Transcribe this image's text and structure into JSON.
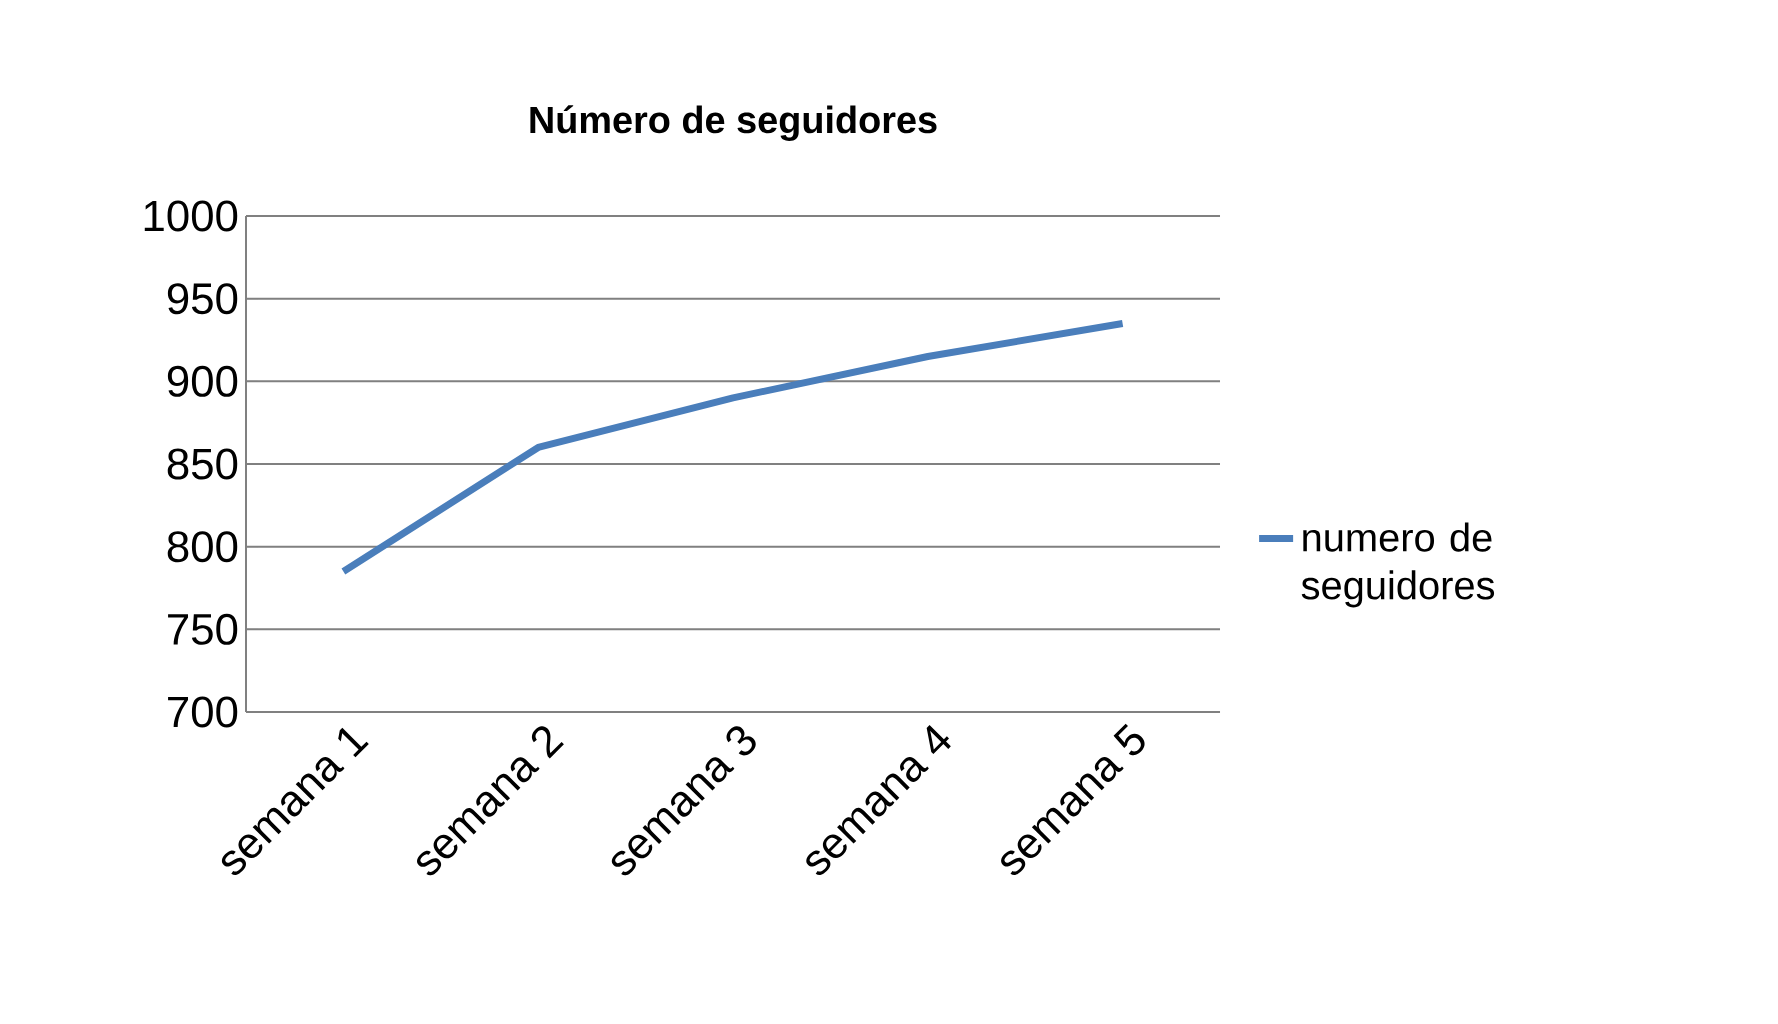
{
  "chart_data": {
    "type": "line",
    "title": "Número de seguidores",
    "categories": [
      "semana 1",
      "semana 2",
      "semana 3",
      "semana 4",
      "semana 5"
    ],
    "series": [
      {
        "name": "numero de seguidores",
        "color": "#4a7ebb",
        "values": [
          785,
          860,
          890,
          915,
          935
        ]
      }
    ],
    "ylim": [
      700,
      1000
    ],
    "yticks": [
      700,
      750,
      800,
      850,
      900,
      950,
      1000
    ],
    "grid": "y",
    "legend": "right",
    "marker": "none",
    "line_style": "solid"
  }
}
